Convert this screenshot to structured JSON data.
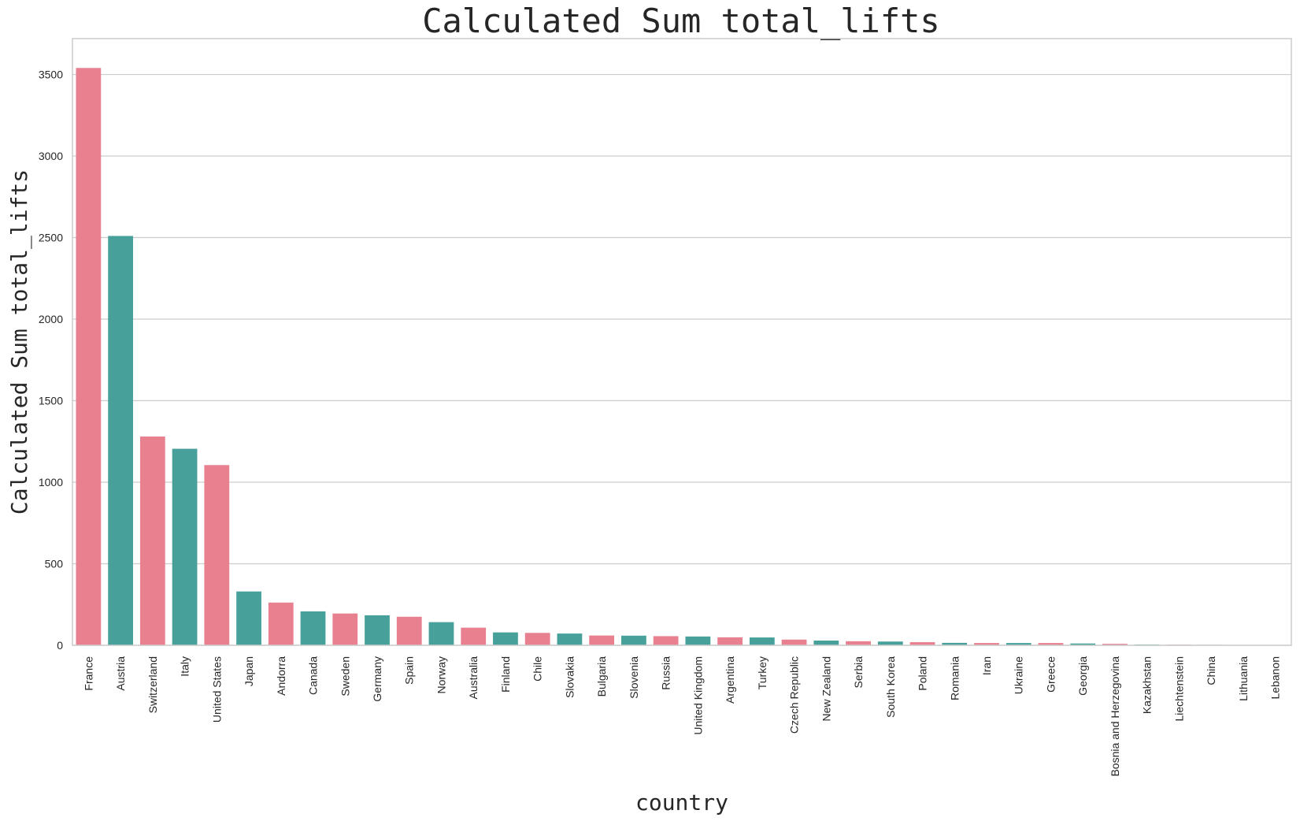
{
  "colors": {
    "pink": "#e8808f",
    "teal": "#47a19a"
  },
  "chart_data": {
    "type": "bar",
    "title": "Calculated Sum total_lifts",
    "xlabel": "country",
    "ylabel": "Calculated Sum total_lifts",
    "ylim": [
      0,
      3720
    ],
    "yticks": [
      0,
      500,
      1000,
      1500,
      2000,
      2500,
      3000,
      3500
    ],
    "grid": true,
    "categories": [
      "France",
      "Austria",
      "Switzerland",
      "Italy",
      "United States",
      "Japan",
      "Andorra",
      "Canada",
      "Sweden",
      "Germany",
      "Spain",
      "Norway",
      "Australia",
      "Finland",
      "Chile",
      "Slovakia",
      "Bulgaria",
      "Slovenia",
      "Russia",
      "United Kingdom",
      "Argentina",
      "Turkey",
      "Czech Republic",
      "New Zealand",
      "Serbia",
      "South Korea",
      "Poland",
      "Romania",
      "Iran",
      "Ukraine",
      "Greece",
      "Georgia",
      "Bosnia and Herzegovina",
      "Kazakhstan",
      "Liechtenstein",
      "China",
      "Lithuania",
      "Lebanon"
    ],
    "values": [
      3540,
      2510,
      1280,
      1205,
      1105,
      330,
      262,
      208,
      195,
      184,
      175,
      142,
      108,
      79,
      76,
      72,
      60,
      59,
      56,
      54,
      49,
      48,
      35,
      29,
      25,
      23,
      19,
      15,
      14,
      14,
      14,
      11,
      9,
      5,
      4,
      3,
      2,
      1
    ],
    "bar_colors": [
      "pink",
      "teal",
      "pink",
      "teal",
      "pink",
      "teal",
      "pink",
      "teal",
      "pink",
      "teal",
      "pink",
      "teal",
      "pink",
      "teal",
      "pink",
      "teal",
      "pink",
      "teal",
      "pink",
      "teal",
      "pink",
      "teal",
      "pink",
      "teal",
      "pink",
      "teal",
      "pink",
      "teal",
      "pink",
      "teal",
      "pink",
      "teal",
      "pink",
      "teal",
      "pink",
      "teal",
      "pink",
      "teal"
    ]
  }
}
